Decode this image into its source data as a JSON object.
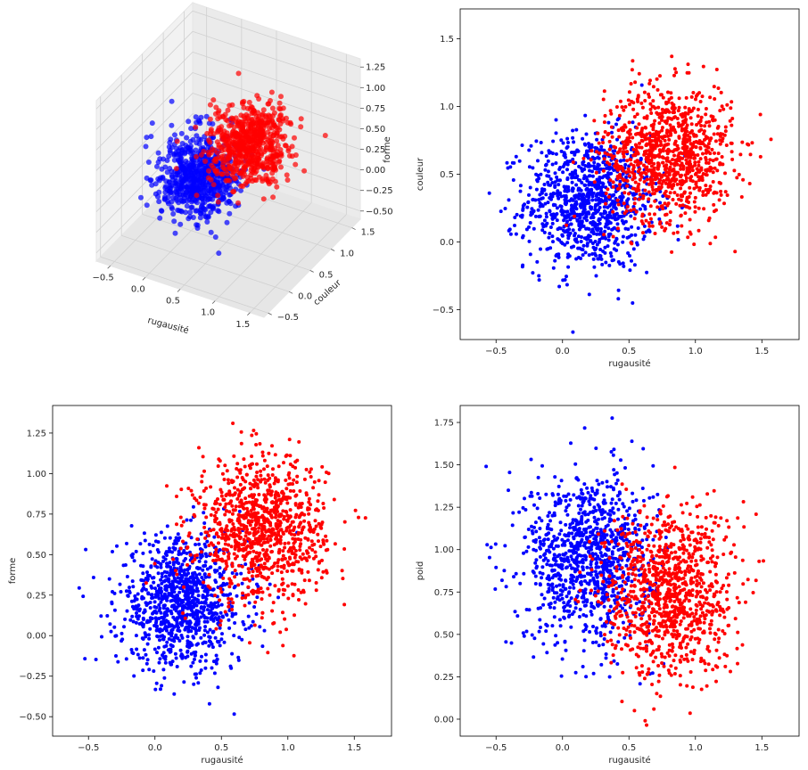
{
  "colors": {
    "class_a": "#0000ff",
    "class_b": "#ff0000"
  },
  "chart_data": [
    {
      "type": "scatter3d",
      "xlabel": "rugausité",
      "ylabel": "couleur",
      "zlabel": "forme",
      "xticks": [
        "−0.5",
        "0.0",
        "0.5",
        "1.0",
        "1.5"
      ],
      "yticks": [
        "−0.5",
        "0.0",
        "0.5",
        "1.0",
        "1.5"
      ],
      "zticks": [
        "−0.50",
        "−0.25",
        "0.00",
        "0.25",
        "0.50",
        "0.75",
        "1.00",
        "1.25"
      ],
      "xlim": [
        -0.7,
        1.7
      ],
      "ylim": [
        -0.6,
        1.7
      ],
      "zlim": [
        -0.6,
        1.35
      ],
      "grid": true,
      "series": [
        {
          "color": "#0000ff",
          "center": [
            0.25,
            0.25,
            0.25
          ],
          "spread": 0.25
        },
        {
          "color": "#ff0000",
          "center": [
            0.75,
            0.65,
            0.6
          ],
          "spread": 0.25
        }
      ]
    },
    {
      "type": "scatter",
      "xlabel": "rugausité",
      "ylabel": "couleur",
      "xlim": [
        -0.77,
        1.78
      ],
      "ylim": [
        -0.72,
        1.72
      ],
      "xticks": [
        "−0.5",
        "0.0",
        "0.5",
        "1.0",
        "1.5"
      ],
      "yticks": [
        "−0.5",
        "0.0",
        "0.5",
        "1.0",
        "1.5"
      ],
      "grid": false,
      "series": [
        {
          "color": "#0000ff",
          "center": [
            0.2,
            0.3
          ],
          "spread": [
            0.24,
            0.25
          ]
        },
        {
          "color": "#ff0000",
          "center": [
            0.8,
            0.65
          ],
          "spread": [
            0.24,
            0.25
          ]
        }
      ]
    },
    {
      "type": "scatter",
      "xlabel": "rugausité",
      "ylabel": "forme",
      "xlim": [
        -0.77,
        1.78
      ],
      "ylim": [
        -0.62,
        1.42
      ],
      "xticks": [
        "−0.5",
        "0.0",
        "0.5",
        "1.0",
        "1.5"
      ],
      "yticks": [
        "−0.50",
        "−0.25",
        "0.00",
        "0.25",
        "0.50",
        "0.75",
        "1.00",
        "1.25"
      ],
      "grid": false,
      "series": [
        {
          "color": "#0000ff",
          "center": [
            0.2,
            0.2
          ],
          "spread": [
            0.24,
            0.2
          ]
        },
        {
          "color": "#ff0000",
          "center": [
            0.8,
            0.65
          ],
          "spread": [
            0.24,
            0.22
          ]
        }
      ]
    },
    {
      "type": "scatter",
      "xlabel": "rugausité",
      "ylabel": "poid",
      "xlim": [
        -0.77,
        1.78
      ],
      "ylim": [
        -0.1,
        1.85
      ],
      "xticks": [
        "−0.5",
        "0.0",
        "0.5",
        "1.0",
        "1.5"
      ],
      "yticks": [
        "0.00",
        "0.25",
        "0.50",
        "0.75",
        "1.00",
        "1.25",
        "1.50",
        "1.75"
      ],
      "grid": false,
      "series": [
        {
          "color": "#0000ff",
          "center": [
            0.2,
            0.95
          ],
          "spread": [
            0.24,
            0.25
          ]
        },
        {
          "color": "#ff0000",
          "center": [
            0.8,
            0.75
          ],
          "spread": [
            0.24,
            0.25
          ]
        }
      ]
    }
  ]
}
